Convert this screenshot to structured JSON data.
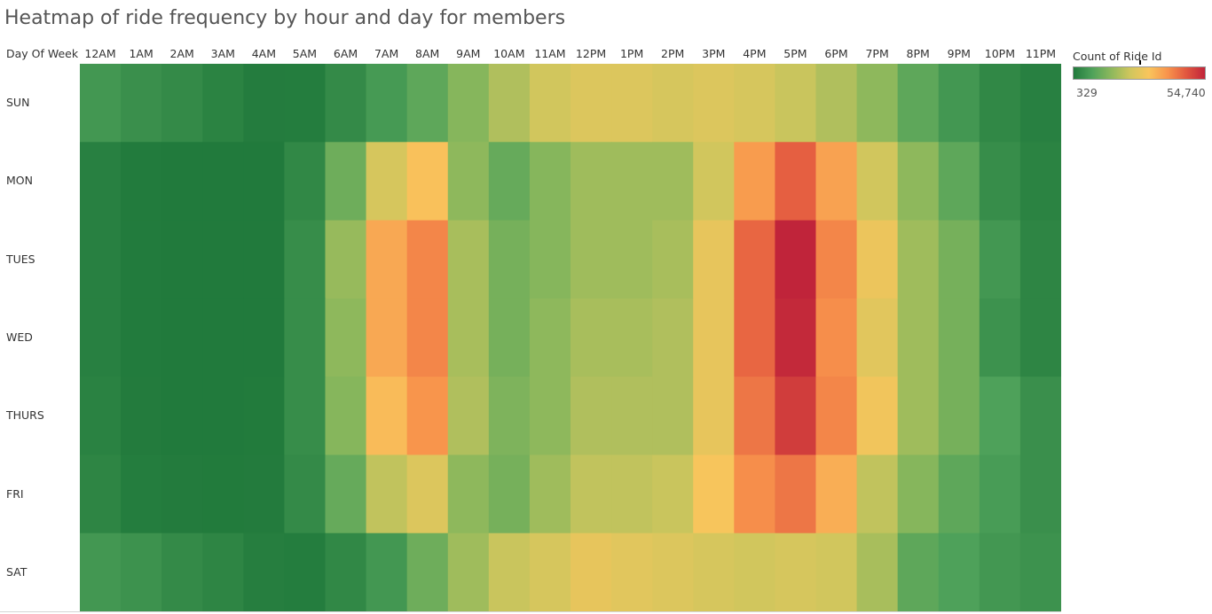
{
  "chart_data": {
    "type": "heatmap",
    "title": "Heatmap of ride frequency by hour and day for members",
    "row_header": "Day Of Week",
    "columns": [
      "12AM",
      "1AM",
      "2AM",
      "3AM",
      "4AM",
      "5AM",
      "6AM",
      "7AM",
      "8AM",
      "9AM",
      "10AM",
      "11AM",
      "12PM",
      "1PM",
      "2PM",
      "3PM",
      "4PM",
      "5PM",
      "6PM",
      "7PM",
      "8PM",
      "9PM",
      "10PM",
      "11PM"
    ],
    "rows": [
      "SUN",
      "MON",
      "TUES",
      "WED",
      "THURS",
      "FRI",
      "SAT"
    ],
    "values": [
      [
        6000,
        4500,
        3500,
        2000,
        800,
        900,
        3500,
        6500,
        10000,
        15000,
        20000,
        24000,
        26000,
        26000,
        25000,
        26000,
        25000,
        23000,
        20000,
        16000,
        10000,
        6000,
        3000,
        1500
      ],
      [
        1500,
        500,
        400,
        329,
        400,
        3000,
        12000,
        25000,
        32000,
        16000,
        11000,
        15000,
        18000,
        18000,
        18000,
        24000,
        38000,
        46000,
        37000,
        24000,
        16000,
        10000,
        4000,
        2000
      ],
      [
        1500,
        500,
        400,
        329,
        400,
        4000,
        17000,
        36000,
        41000,
        19000,
        13000,
        15000,
        18000,
        18000,
        19000,
        28000,
        45000,
        54740,
        41000,
        29000,
        18000,
        13000,
        6000,
        2500
      ],
      [
        1500,
        500,
        400,
        329,
        400,
        4000,
        16000,
        36000,
        41000,
        19000,
        13000,
        16000,
        19000,
        19000,
        20000,
        28000,
        45000,
        54000,
        40000,
        27000,
        18000,
        13000,
        5000,
        2500
      ],
      [
        1800,
        600,
        400,
        350,
        450,
        4000,
        15000,
        33000,
        39000,
        20000,
        14000,
        16000,
        20000,
        20000,
        20000,
        28000,
        43000,
        51000,
        41000,
        30000,
        18000,
        13000,
        8000,
        4500
      ],
      [
        2500,
        900,
        600,
        450,
        600,
        3500,
        11000,
        22000,
        26000,
        16000,
        13000,
        18000,
        22000,
        22000,
        23000,
        31000,
        40000,
        43000,
        35000,
        22000,
        15000,
        10000,
        7000,
        4500
      ],
      [
        6000,
        5000,
        3500,
        2500,
        1200,
        900,
        3000,
        6000,
        12000,
        18000,
        23000,
        25000,
        28000,
        27000,
        26000,
        25000,
        24000,
        25000,
        24000,
        19000,
        10000,
        8000,
        6000,
        5000
      ]
    ],
    "legend": {
      "title": "Count of Ride Id",
      "min": 329,
      "max": 54740,
      "min_label": "329",
      "max_label": "54,740",
      "colors": [
        "#217a3c",
        "#4fa25a",
        "#8db85c",
        "#cfc65d",
        "#f9c55c",
        "#f8944c",
        "#e2573f",
        "#c0243a"
      ]
    }
  }
}
